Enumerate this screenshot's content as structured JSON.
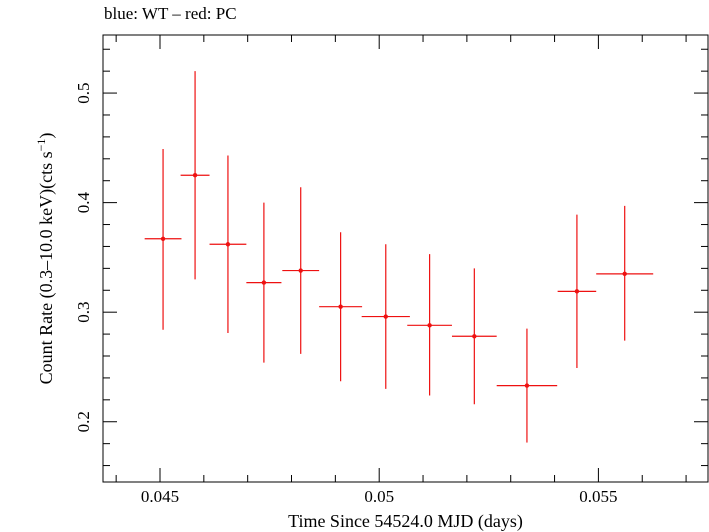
{
  "chart_data": {
    "type": "scatter",
    "title": "blue: WT – red: PC",
    "xlabel": "Time Since 54524.0 MJD (days)",
    "ylabel_parts": {
      "main": "Count Rate (0.3–10.0 keV)(cts s",
      "sup": "−1",
      "close": ")"
    },
    "xlim": [
      0.0437,
      0.0575
    ],
    "ylim": [
      0.145,
      0.553
    ],
    "x_ticks": [
      {
        "value": 0.045,
        "label": "0.045"
      },
      {
        "value": 0.05,
        "label": "0.05"
      },
      {
        "value": 0.055,
        "label": "0.055"
      }
    ],
    "y_ticks": [
      {
        "value": 0.2,
        "label": "0.2"
      },
      {
        "value": 0.3,
        "label": "0.3"
      },
      {
        "value": 0.4,
        "label": "0.4"
      },
      {
        "value": 0.5,
        "label": "0.5"
      }
    ],
    "x_minor_step": 0.001,
    "y_minor_step": 0.02,
    "grid": false,
    "series": [
      {
        "color": "#ee1111",
        "points": [
          {
            "x": 0.04507,
            "xerr": 0.00042,
            "y": 0.367,
            "ylo": 0.284,
            "yhi": 0.449
          },
          {
            "x": 0.0458,
            "xerr": 0.00033,
            "y": 0.425,
            "ylo": 0.33,
            "yhi": 0.52
          },
          {
            "x": 0.04655,
            "xerr": 0.00042,
            "y": 0.362,
            "ylo": 0.281,
            "yhi": 0.443
          },
          {
            "x": 0.04737,
            "xerr": 0.0004,
            "y": 0.327,
            "ylo": 0.254,
            "yhi": 0.4
          },
          {
            "x": 0.04821,
            "xerr": 0.00042,
            "y": 0.338,
            "ylo": 0.262,
            "yhi": 0.414
          },
          {
            "x": 0.04912,
            "xerr": 0.00049,
            "y": 0.305,
            "ylo": 0.237,
            "yhi": 0.373
          },
          {
            "x": 0.05015,
            "xerr": 0.00055,
            "y": 0.296,
            "ylo": 0.23,
            "yhi": 0.362
          },
          {
            "x": 0.05115,
            "xerr": 0.00051,
            "y": 0.288,
            "ylo": 0.224,
            "yhi": 0.353
          },
          {
            "x": 0.05217,
            "xerr": 0.00051,
            "y": 0.278,
            "ylo": 0.216,
            "yhi": 0.34
          },
          {
            "x": 0.05337,
            "xerr": 0.00069,
            "y": 0.233,
            "ylo": 0.181,
            "yhi": 0.285
          },
          {
            "x": 0.05451,
            "xerr": 0.00044,
            "y": 0.319,
            "ylo": 0.249,
            "yhi": 0.389
          },
          {
            "x": 0.0556,
            "xerr": 0.00065,
            "y": 0.335,
            "ylo": 0.274,
            "yhi": 0.397
          }
        ]
      }
    ]
  }
}
